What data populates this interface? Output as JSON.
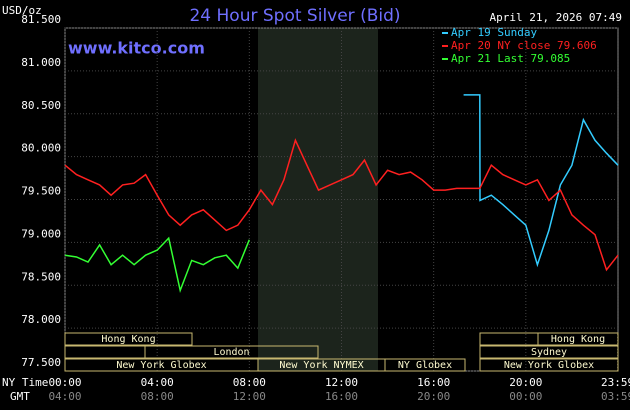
{
  "chart_data": {
    "type": "line",
    "title": "24 Hour Spot Silver (Bid)",
    "unit_label": "USD/oz",
    "timestamp": "April 21, 2026 07:49",
    "watermark": "www.kitco.com",
    "x_axis_label": "NY Time",
    "x2_axis_label": "GMT",
    "xlim": [
      0,
      24
    ],
    "xticks": [
      {
        "value": 0,
        "label": "00:00"
      },
      {
        "value": 4,
        "label": "04:00"
      },
      {
        "value": 8,
        "label": "08:00"
      },
      {
        "value": 12,
        "label": "12:00"
      },
      {
        "value": 16,
        "label": "16:00"
      },
      {
        "value": 20,
        "label": "20:00"
      },
      {
        "value": 23.98,
        "label": "23:59"
      }
    ],
    "x2tick_labels": [
      "04:00",
      "08:00",
      "12:00",
      "16:00",
      "20:00",
      "00:00",
      "03:59"
    ],
    "ylim": [
      77.5,
      81.5
    ],
    "yticks": [
      {
        "value": 77.5,
        "label": "77.500"
      },
      {
        "value": 78,
        "label": "78.000"
      },
      {
        "value": 78.5,
        "label": "78.500"
      },
      {
        "value": 79,
        "label": "79.000"
      },
      {
        "value": 79.5,
        "label": "79.500"
      },
      {
        "value": 80,
        "label": "80.000"
      },
      {
        "value": 80.5,
        "label": "80.500"
      },
      {
        "value": 81,
        "label": "81.000"
      },
      {
        "value": 81.5,
        "label": "81.500"
      }
    ],
    "grid": true,
    "sessions": [
      "Hong Kong",
      "London",
      "New York Globex",
      "New York NYMEX",
      "NY Globex",
      "Hong Kong",
      "Sydney",
      "New York Globex"
    ],
    "series": [
      {
        "name": "Apr 19 Sunday",
        "color": "#33ccff",
        "x": [
          17.3,
          18,
          18.01,
          18.5,
          19,
          19.5,
          20,
          20.5,
          21,
          21.5,
          22,
          22.5,
          23,
          23.5,
          24
        ],
        "values": [
          80.72,
          80.72,
          79.49,
          79.55,
          79.44,
          79.32,
          79.2,
          78.74,
          79.14,
          79.67,
          79.9,
          80.43,
          80.19,
          80.04,
          79.9
        ]
      },
      {
        "name": "Apr 20 NY close 79.606",
        "color": "#ff2020",
        "x": [
          0,
          0.5,
          1,
          1.5,
          2,
          2.5,
          3,
          3.5,
          4,
          4.5,
          5,
          5.5,
          6,
          6.5,
          7,
          7.5,
          8,
          8.5,
          9,
          9.5,
          10,
          10.5,
          11,
          11.5,
          12,
          12.5,
          13,
          13.5,
          14,
          14.5,
          15,
          15.5,
          16,
          16.5,
          17,
          17.5,
          18,
          18.5,
          19,
          19.5,
          20,
          20.5,
          21,
          21.5,
          22,
          22.5,
          23,
          23.5,
          24
        ],
        "values": [
          79.9,
          79.79,
          79.73,
          79.67,
          79.55,
          79.67,
          79.69,
          79.79,
          79.55,
          79.32,
          79.2,
          79.32,
          79.38,
          79.26,
          79.14,
          79.2,
          79.38,
          79.61,
          79.44,
          79.73,
          80.19,
          79.9,
          79.61,
          79.67,
          79.73,
          79.79,
          79.96,
          79.67,
          79.84,
          79.79,
          79.82,
          79.73,
          79.61,
          79.61,
          79.63,
          79.63,
          79.63,
          79.9,
          79.79,
          79.73,
          79.67,
          79.73,
          79.49,
          79.61,
          79.32,
          79.2,
          79.09,
          78.68,
          78.85
        ]
      },
      {
        "name": "Apr 21 Last 79.085",
        "color": "#33ff33",
        "x": [
          0,
          0.5,
          1,
          1.5,
          2,
          2.5,
          3,
          3.5,
          4,
          4.5,
          5,
          5.5,
          6,
          6.5,
          7,
          7.5,
          8
        ],
        "values": [
          78.85,
          78.83,
          78.77,
          78.97,
          78.74,
          78.85,
          78.74,
          78.85,
          78.91,
          79.05,
          78.44,
          78.79,
          78.74,
          78.82,
          78.85,
          78.7,
          79.03
        ]
      }
    ]
  }
}
